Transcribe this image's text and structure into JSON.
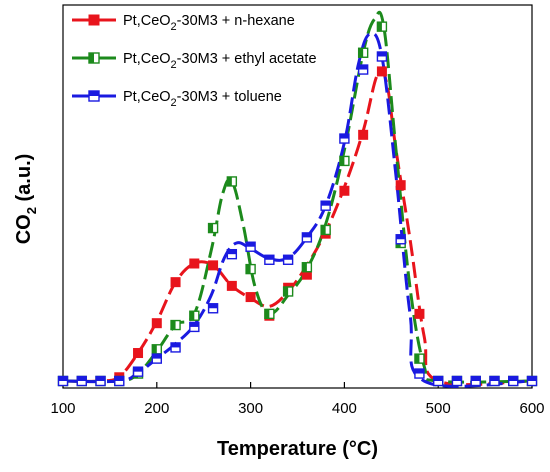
{
  "chart_data": {
    "type": "line",
    "title": "",
    "xlabel": "Temperature (°C)",
    "ylabel_main": "CO",
    "ylabel_sub": "2",
    "ylabel_suffix": " (a.u.)",
    "xlim": [
      100,
      600
    ],
    "ylim": [
      0,
      1.0
    ],
    "x_ticks": [
      100,
      200,
      300,
      400,
      500,
      600
    ],
    "x_tick_labels": [
      "100",
      "200",
      "300",
      "400",
      "500",
      "600"
    ],
    "grid": false,
    "legend_position": "top-left",
    "series": [
      {
        "name_main": "Pt,CeO",
        "name_sub": "2",
        "name_suffix": "-30M3 + n-hexane",
        "color": "#e8141c",
        "marker": "filled-square",
        "markers": [
          [
            100,
            0.0
          ],
          [
            120,
            0.0
          ],
          [
            140,
            0.0
          ],
          [
            160,
            0.01
          ],
          [
            180,
            0.075
          ],
          [
            200,
            0.155
          ],
          [
            220,
            0.265
          ],
          [
            240,
            0.315
          ],
          [
            260,
            0.31
          ],
          [
            280,
            0.255
          ],
          [
            300,
            0.225
          ],
          [
            320,
            0.175
          ],
          [
            340,
            0.25
          ],
          [
            360,
            0.285
          ],
          [
            380,
            0.395
          ],
          [
            400,
            0.51
          ],
          [
            420,
            0.66
          ],
          [
            440,
            0.83
          ],
          [
            460,
            0.525
          ],
          [
            480,
            0.18
          ],
          [
            500,
            0.0
          ],
          [
            520,
            0.0
          ],
          [
            540,
            0.0
          ],
          [
            560,
            0.0
          ],
          [
            580,
            0.0
          ],
          [
            600,
            0.0
          ]
        ],
        "curve": [
          [
            100,
            0.0
          ],
          [
            140,
            0.0
          ],
          [
            160,
            0.012
          ],
          [
            180,
            0.075
          ],
          [
            200,
            0.16
          ],
          [
            220,
            0.265
          ],
          [
            240,
            0.315
          ],
          [
            260,
            0.31
          ],
          [
            280,
            0.255
          ],
          [
            300,
            0.222
          ],
          [
            320,
            0.2
          ],
          [
            340,
            0.24
          ],
          [
            360,
            0.31
          ],
          [
            380,
            0.4
          ],
          [
            400,
            0.52
          ],
          [
            420,
            0.67
          ],
          [
            435,
            0.82
          ],
          [
            445,
            0.8
          ],
          [
            455,
            0.62
          ],
          [
            470,
            0.38
          ],
          [
            485,
            0.12
          ],
          [
            500,
            0.0
          ],
          [
            600,
            0.0
          ]
        ]
      },
      {
        "name_main": "Pt,CeO",
        "name_sub": "2",
        "name_suffix": "-30M3 + ethyl acetate",
        "color": "#1c8a1c",
        "marker": "half-filled-square",
        "markers": [
          [
            100,
            0.0
          ],
          [
            120,
            0.0
          ],
          [
            140,
            0.0
          ],
          [
            160,
            0.0
          ],
          [
            180,
            0.02
          ],
          [
            200,
            0.085
          ],
          [
            220,
            0.15
          ],
          [
            240,
            0.175
          ],
          [
            260,
            0.41
          ],
          [
            280,
            0.535
          ],
          [
            300,
            0.3
          ],
          [
            320,
            0.18
          ],
          [
            340,
            0.24
          ],
          [
            360,
            0.305
          ],
          [
            380,
            0.405
          ],
          [
            400,
            0.59
          ],
          [
            420,
            0.88
          ],
          [
            440,
            0.95
          ],
          [
            460,
            0.37
          ],
          [
            480,
            0.06
          ],
          [
            500,
            0.0
          ],
          [
            520,
            0.0
          ],
          [
            540,
            0.0
          ],
          [
            560,
            0.0
          ],
          [
            580,
            0.0
          ],
          [
            600,
            0.0
          ]
        ],
        "curve": [
          [
            100,
            0.0
          ],
          [
            160,
            0.0
          ],
          [
            180,
            0.02
          ],
          [
            200,
            0.08
          ],
          [
            220,
            0.15
          ],
          [
            240,
            0.18
          ],
          [
            258,
            0.35
          ],
          [
            270,
            0.5
          ],
          [
            280,
            0.535
          ],
          [
            292,
            0.42
          ],
          [
            305,
            0.25
          ],
          [
            320,
            0.18
          ],
          [
            340,
            0.23
          ],
          [
            360,
            0.3
          ],
          [
            380,
            0.42
          ],
          [
            400,
            0.62
          ],
          [
            420,
            0.88
          ],
          [
            432,
            0.97
          ],
          [
            442,
            0.95
          ],
          [
            455,
            0.62
          ],
          [
            470,
            0.25
          ],
          [
            485,
            0.04
          ],
          [
            500,
            0.0
          ],
          [
            600,
            0.0
          ]
        ]
      },
      {
        "name_main": "Pt,CeO",
        "name_sub": "2",
        "name_suffix": "-30M3 + toluene",
        "color": "#1a1ae0",
        "marker": "open-square",
        "markers": [
          [
            100,
            0.0
          ],
          [
            120,
            0.0
          ],
          [
            140,
            0.0
          ],
          [
            160,
            0.0
          ],
          [
            180,
            0.025
          ],
          [
            200,
            0.06
          ],
          [
            220,
            0.09
          ],
          [
            240,
            0.145
          ],
          [
            260,
            0.195
          ],
          [
            280,
            0.34
          ],
          [
            300,
            0.36
          ],
          [
            320,
            0.325
          ],
          [
            340,
            0.325
          ],
          [
            360,
            0.385
          ],
          [
            380,
            0.47
          ],
          [
            400,
            0.65
          ],
          [
            420,
            0.835
          ],
          [
            440,
            0.87
          ],
          [
            460,
            0.38
          ],
          [
            480,
            0.02
          ],
          [
            500,
            0.0
          ],
          [
            520,
            0.0
          ],
          [
            540,
            0.0
          ],
          [
            560,
            0.0
          ],
          [
            580,
            0.0
          ],
          [
            600,
            0.0
          ]
        ],
        "curve": [
          [
            100,
            0.0
          ],
          [
            160,
            0.0
          ],
          [
            180,
            0.022
          ],
          [
            200,
            0.06
          ],
          [
            220,
            0.1
          ],
          [
            240,
            0.15
          ],
          [
            258,
            0.23
          ],
          [
            272,
            0.33
          ],
          [
            285,
            0.37
          ],
          [
            300,
            0.355
          ],
          [
            320,
            0.328
          ],
          [
            340,
            0.33
          ],
          [
            360,
            0.385
          ],
          [
            380,
            0.47
          ],
          [
            400,
            0.64
          ],
          [
            415,
            0.85
          ],
          [
            427,
            0.93
          ],
          [
            440,
            0.87
          ],
          [
            455,
            0.55
          ],
          [
            470,
            0.18
          ],
          [
            485,
            0.0
          ],
          [
            600,
            0.0
          ]
        ]
      }
    ]
  }
}
